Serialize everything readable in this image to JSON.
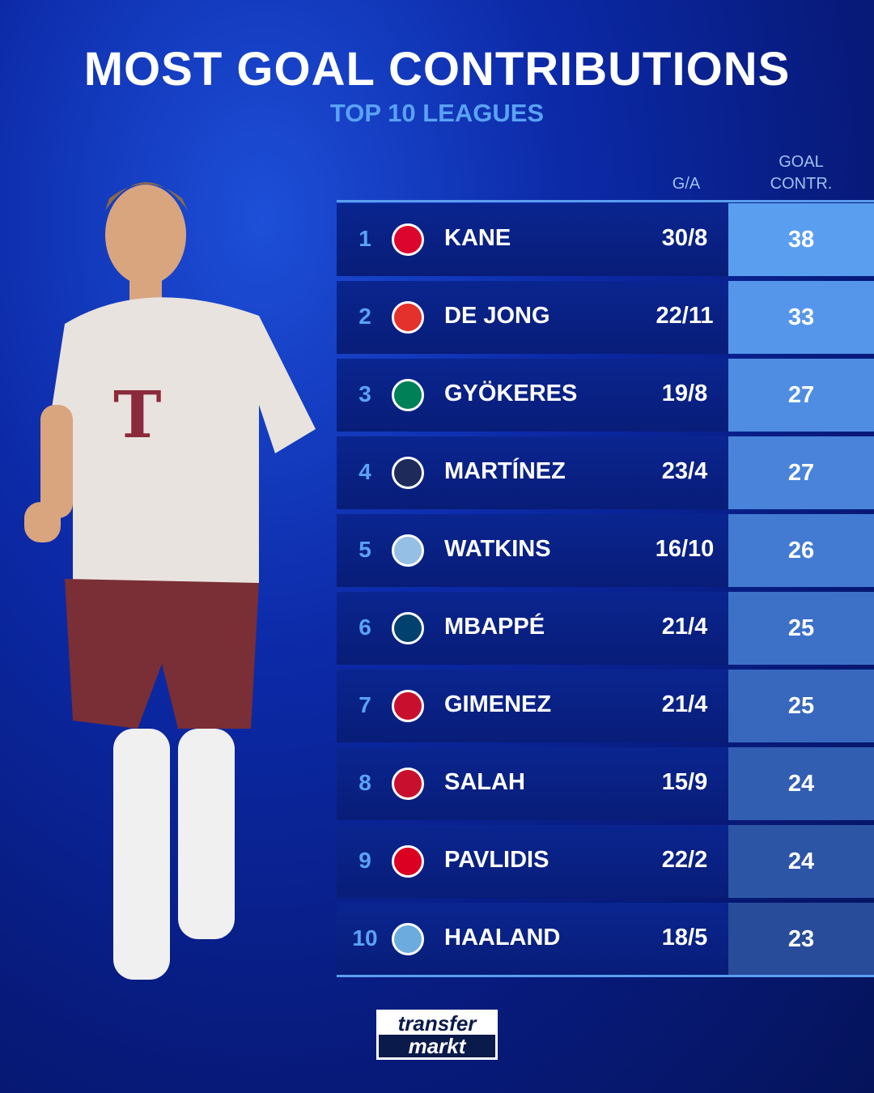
{
  "title": "MOST GOAL CONTRIBUTIONS",
  "subtitle": "TOP 10 LEAGUES",
  "headers": {
    "ga": "G/A",
    "gc_line1": "GOAL",
    "gc_line2": "CONTR."
  },
  "rows": [
    {
      "rank": "1",
      "club_crest": "bayern-munich-crest",
      "crest_color": "#dc052d",
      "name": "KANE",
      "ga": "30/8",
      "gc": "38",
      "gc_color": "#5a9ef0"
    },
    {
      "rank": "2",
      "club_crest": "psv-crest",
      "crest_color": "#e4312b",
      "name": "DE JONG",
      "ga": "22/11",
      "gc": "33",
      "gc_color": "#5596ea"
    },
    {
      "rank": "3",
      "club_crest": "sporting-cp-crest",
      "crest_color": "#008057",
      "name": "GYÖKERES",
      "ga": "19/8",
      "gc": "27",
      "gc_color": "#4f8de2"
    },
    {
      "rank": "4",
      "club_crest": "inter-milan-crest",
      "crest_color": "#1e2a5a",
      "name": "MARTÍNEZ",
      "ga": "23/4",
      "gc": "27",
      "gc_color": "#4984da"
    },
    {
      "rank": "5",
      "club_crest": "aston-villa-crest",
      "crest_color": "#95bfe5",
      "name": "WATKINS",
      "ga": "16/10",
      "gc": "26",
      "gc_color": "#437bd2"
    },
    {
      "rank": "6",
      "club_crest": "psg-crest",
      "crest_color": "#004170",
      "name": "MBAPPÉ",
      "ga": "21/4",
      "gc": "25",
      "gc_color": "#3d71c8"
    },
    {
      "rank": "7",
      "club_crest": "feyenoord-crest",
      "crest_color": "#c8102e",
      "name": "GIMENEZ",
      "ga": "21/4",
      "gc": "25",
      "gc_color": "#3768be"
    },
    {
      "rank": "8",
      "club_crest": "liverpool-crest",
      "crest_color": "#c8102e",
      "name": "SALAH",
      "ga": "15/9",
      "gc": "24",
      "gc_color": "#325eb2"
    },
    {
      "rank": "9",
      "club_crest": "az-alkmaar-crest",
      "crest_color": "#db0021",
      "name": "PAVLIDIS",
      "ga": "22/2",
      "gc": "24",
      "gc_color": "#2d55a6"
    },
    {
      "rank": "10",
      "club_crest": "manchester-city-crest",
      "crest_color": "#6cabdd",
      "name": "HAALAND",
      "ga": "18/5",
      "gc": "23",
      "gc_color": "#284c9a"
    }
  ],
  "logo": {
    "line1": "transfer",
    "line2": "markt"
  }
}
